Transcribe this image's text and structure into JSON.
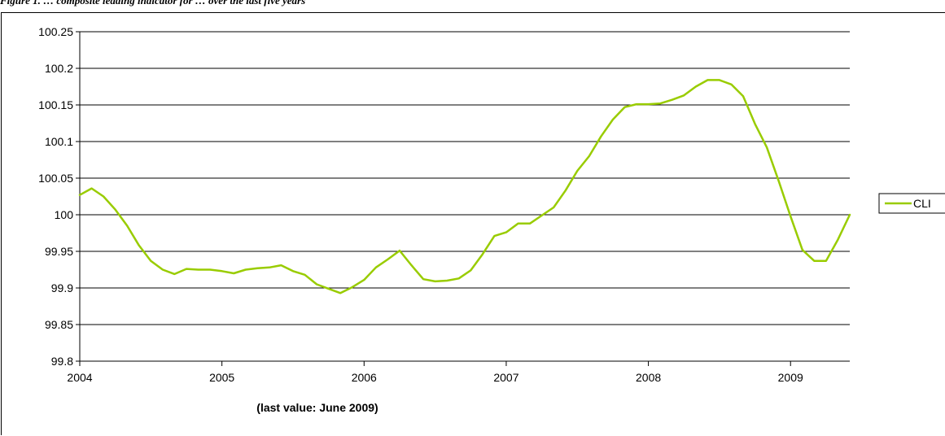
{
  "caption": "Figure 1. … composite leading indicator for … over the last five years",
  "chart_data": {
    "type": "line",
    "xlabel": "(last value: June 2009)",
    "ylabel": "",
    "ylim": [
      99.8,
      100.25
    ],
    "yticks": [
      99.8,
      99.85,
      99.9,
      99.95,
      100,
      100.05,
      100.1,
      100.15,
      100.2,
      100.25
    ],
    "ytick_labels": [
      "99.8",
      "99.85",
      "99.9",
      "99.95",
      "100",
      "100.05",
      "100.1",
      "100.15",
      "100.2",
      "100.25"
    ],
    "xlim": [
      "2004-01",
      "2009-06"
    ],
    "xticks": [
      "2004",
      "2005",
      "2006",
      "2007",
      "2008",
      "2009"
    ],
    "grid": "horizontal",
    "legend": "right",
    "line_color": "#99CC00",
    "series": [
      {
        "name": "CLI",
        "x": [
          "2004-01",
          "2004-02",
          "2004-03",
          "2004-04",
          "2004-05",
          "2004-06",
          "2004-07",
          "2004-08",
          "2004-09",
          "2004-10",
          "2004-11",
          "2004-12",
          "2005-01",
          "2005-02",
          "2005-03",
          "2005-04",
          "2005-05",
          "2005-06",
          "2005-07",
          "2005-08",
          "2005-09",
          "2005-10",
          "2005-11",
          "2005-12",
          "2006-01",
          "2006-02",
          "2006-03",
          "2006-04",
          "2006-05",
          "2006-06",
          "2006-07",
          "2006-08",
          "2006-09",
          "2006-10",
          "2006-11",
          "2006-12",
          "2007-01",
          "2007-02",
          "2007-03",
          "2007-04",
          "2007-05",
          "2007-06",
          "2007-07",
          "2007-08",
          "2007-09",
          "2007-10",
          "2007-11",
          "2007-12",
          "2008-01",
          "2008-02",
          "2008-03",
          "2008-04",
          "2008-05",
          "2008-06",
          "2008-07",
          "2008-08",
          "2008-09",
          "2008-10",
          "2008-11",
          "2008-12",
          "2009-01",
          "2009-02",
          "2009-03",
          "2009-04",
          "2009-05",
          "2009-06"
        ],
        "values": [
          100.027,
          100.036,
          100.025,
          100.007,
          99.985,
          99.958,
          99.937,
          99.925,
          99.919,
          99.926,
          99.925,
          99.925,
          99.923,
          99.92,
          99.925,
          99.927,
          99.928,
          99.931,
          99.923,
          99.918,
          99.905,
          99.899,
          99.893,
          99.901,
          99.911,
          99.928,
          99.939,
          99.951,
          99.931,
          99.912,
          99.909,
          99.91,
          99.913,
          99.924,
          99.946,
          99.971,
          99.976,
          99.988,
          99.988,
          99.999,
          100.01,
          100.033,
          100.06,
          100.08,
          100.107,
          100.13,
          100.147,
          100.151,
          100.151,
          100.152,
          100.157,
          100.163,
          100.175,
          100.184,
          100.184,
          100.178,
          100.162,
          100.124,
          100.092,
          100.046,
          99.998,
          99.952,
          99.937,
          99.937,
          99.966,
          100.0
        ]
      }
    ]
  }
}
